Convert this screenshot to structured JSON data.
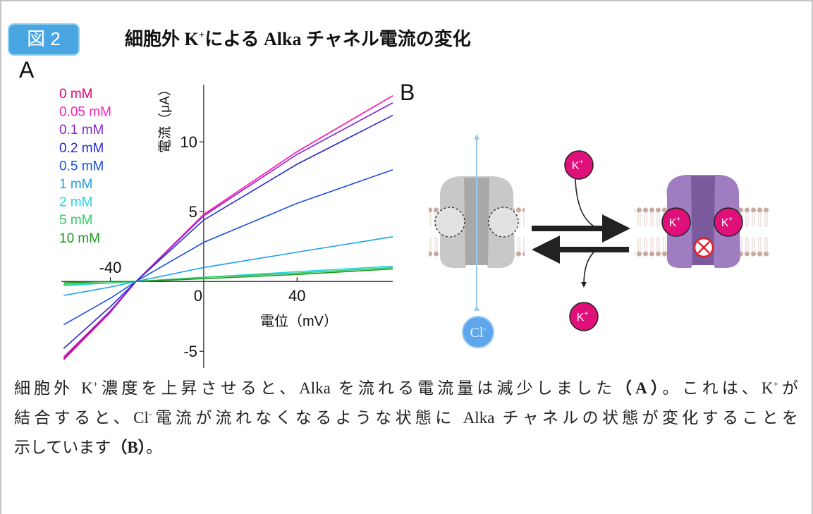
{
  "header": {
    "badge": "図 2",
    "title": [
      "細胞外 K",
      "+",
      "による Alka チャネル電流の変化"
    ]
  },
  "panel_a": {
    "label": "A"
  },
  "panel_b": {
    "label": "B",
    "ion_k": [
      "K",
      "+"
    ],
    "ion_cl": [
      "Cl",
      "-"
    ]
  },
  "chart_data": {
    "type": "line",
    "xlabel": "電位（mV）",
    "ylabel": "電流（μA）",
    "x": [
      -60,
      -40,
      -29,
      0,
      40,
      81
    ],
    "xlim": [
      -61,
      81
    ],
    "ylim": [
      -6.2,
      14.1
    ],
    "xticks": [
      -40,
      0,
      40
    ],
    "yticks": [
      -5,
      5,
      10
    ],
    "series": [
      {
        "name": "0 mM",
        "color": "#e8006e",
        "values": [
          -5.6,
          -2.2,
          0,
          4.8,
          9.3,
          13.3
        ]
      },
      {
        "name": "0.05 mM",
        "color": "#ff22b4",
        "values": [
          -5.4,
          -2.1,
          0,
          4.8,
          9.3,
          13.3
        ]
      },
      {
        "name": "0.1 mM",
        "color": "#8a22d8",
        "values": [
          -5.5,
          -2.1,
          0,
          4.7,
          9.1,
          12.8
        ]
      },
      {
        "name": "0.2 mM",
        "color": "#2a2ad0",
        "values": [
          -4.8,
          -1.8,
          0,
          4.4,
          8.4,
          11.9
        ]
      },
      {
        "name": "0.5 mM",
        "color": "#1c50e0",
        "values": [
          -3.1,
          -1.2,
          0,
          2.8,
          5.6,
          8.0
        ]
      },
      {
        "name": "1 mM",
        "color": "#1ea0e8",
        "values": [
          -1.0,
          -0.4,
          0,
          1.0,
          2.1,
          3.2
        ]
      },
      {
        "name": "2 mM",
        "color": "#22d4ea",
        "values": [
          -0.3,
          -0.1,
          0,
          0.3,
          0.7,
          1.1
        ]
      },
      {
        "name": "5 mM",
        "color": "#33cc66",
        "values": [
          -0.2,
          -0.1,
          0,
          0.3,
          0.6,
          1.0
        ]
      },
      {
        "name": "10 mM",
        "color": "#1a9a1a",
        "values": [
          -0.1,
          0,
          0,
          0.2,
          0.5,
          0.9
        ]
      }
    ]
  },
  "body": {
    "lines": [
      [
        "細胞外 K",
        "+",
        "濃度を上昇させると、Alka を流れる電流量は減少しました",
        "（A）",
        "。これは、K",
        "+",
        "が"
      ],
      [
        "結合すると、Cl",
        "-",
        "電流が流れなくなるような状態に Alka チャネルの状態が変化することを"
      ],
      [
        "示しています",
        "（B）",
        "。"
      ]
    ]
  }
}
